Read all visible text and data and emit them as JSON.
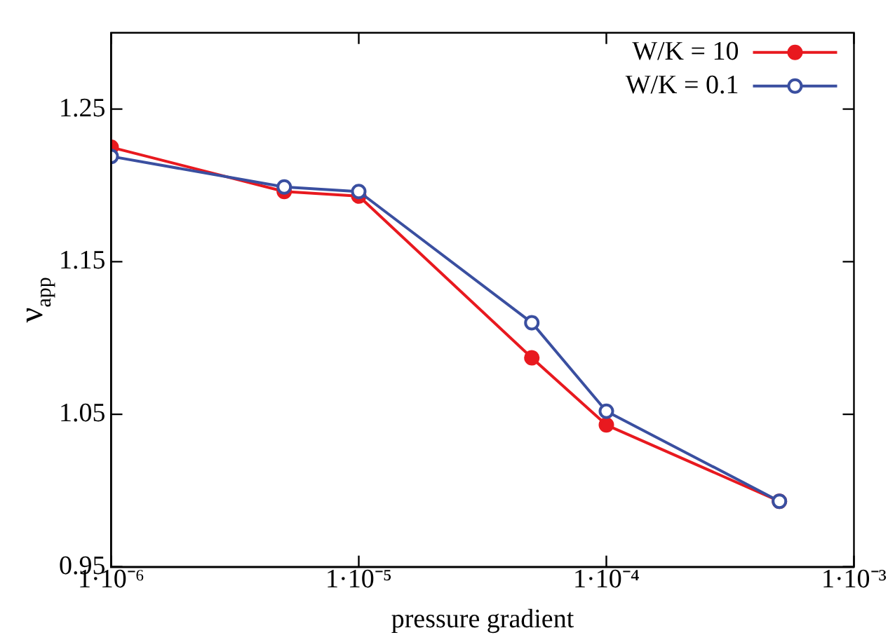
{
  "chart_data": {
    "type": "line",
    "xlabel": "pressure gradient",
    "ylabel": "ν$_{app}$",
    "log": "x",
    "xlim": [
      1e-06,
      0.001
    ],
    "xticks": [
      {
        "value": 1e-06,
        "label": "1·10⁻⁶"
      },
      {
        "value": 1e-05,
        "label": "1·10⁻⁵"
      },
      {
        "value": 0.0001,
        "label": "1·10⁻⁴"
      },
      {
        "value": 0.001,
        "label": "1·10⁻³"
      }
    ],
    "ylim": [
      0.95,
      1.3
    ],
    "yticks": [
      0.95,
      1.05,
      1.15,
      1.25
    ],
    "x": [
      1e-06,
      5e-06,
      1e-05,
      5e-05,
      0.0001,
      0.0005
    ],
    "series": [
      {
        "name": "W/K = 10",
        "color": "#e8191f",
        "values": [
          1.225,
          1.196,
          1.193,
          1.087,
          1.043,
          0.993
        ]
      },
      {
        "name": "W/K = 0.1",
        "color": "#3a4fa0",
        "values": [
          1.219,
          1.199,
          1.196,
          1.11,
          1.052,
          0.993
        ]
      }
    ],
    "legend": "top right",
    "marker": "circle",
    "grid": false
  }
}
